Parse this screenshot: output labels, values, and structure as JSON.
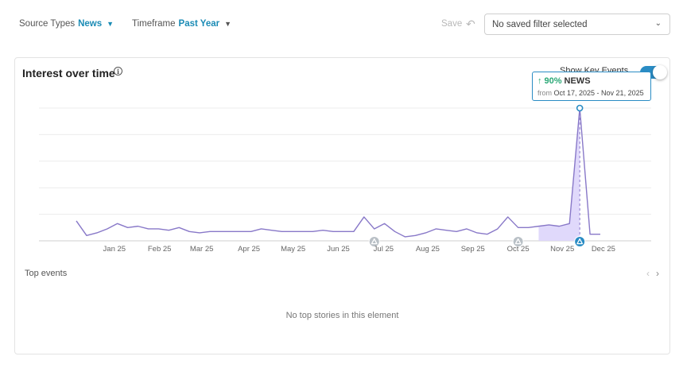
{
  "filters": {
    "source_label": "Source Types",
    "source_value": "News",
    "timeframe_label": "Timeframe",
    "timeframe_value": "Past Year"
  },
  "toolbar": {
    "save_label": "Save"
  },
  "saved_filter": {
    "value": "No saved filter selected"
  },
  "card": {
    "title": "Interest over time",
    "show_key_events_label": "Show Key Events",
    "show_key_events": true
  },
  "tooltip": {
    "percent": "90%",
    "series": "NEWS",
    "from_label": "from",
    "dates": "Oct 17, 2025 - Nov 21, 2025"
  },
  "top_events": {
    "label": "Top events",
    "empty_text": "No top stories in this element"
  },
  "colors": {
    "accent": "#2a8cc4",
    "line": "#8878c8",
    "fill": "#ddd5fb",
    "up": "#2aa876"
  },
  "chart_data": {
    "type": "line",
    "title": "",
    "xlabel": "",
    "ylabel": "",
    "ylim": [
      0,
      100
    ],
    "grid": true,
    "x_tick_labels": [
      "Jan 25",
      "Feb 25",
      "Mar 25",
      "Apr 25",
      "May 25",
      "Jun 25",
      "Jul 25",
      "Aug 25",
      "Sep 25",
      "Oct 25",
      "Nov 25",
      "Dec 25"
    ],
    "x_tick_weeks": [
      3.7,
      8.1,
      12.2,
      16.8,
      21.1,
      25.5,
      29.9,
      34.2,
      38.6,
      43.0,
      47.3,
      51.3
    ],
    "series": [
      {
        "name": "NEWS",
        "week_index": [
          0,
          1,
          2,
          3,
          4,
          5,
          6,
          7,
          8,
          9,
          10,
          11,
          12,
          13,
          14,
          15,
          16,
          17,
          18,
          19,
          20,
          21,
          22,
          23,
          24,
          25,
          26,
          27,
          28,
          29,
          30,
          31,
          32,
          33,
          34,
          35,
          36,
          37,
          38,
          39,
          40,
          41,
          42,
          43,
          44,
          45,
          46,
          47,
          48,
          49,
          50,
          51
        ],
        "values": [
          15,
          4,
          6,
          9,
          13,
          10,
          11,
          9,
          9,
          8,
          10,
          7,
          6,
          7,
          7,
          7,
          7,
          7,
          9,
          8,
          7,
          7,
          7,
          7,
          8,
          7,
          7,
          7,
          18,
          9,
          13,
          7,
          3,
          4,
          6,
          9,
          8,
          7,
          9,
          6,
          5,
          9,
          18,
          10,
          10,
          11,
          12,
          11,
          13,
          100,
          5,
          5
        ]
      }
    ],
    "highlight_range_weeks": [
      45,
      49
    ],
    "key_event_weeks": [
      29,
      43,
      49
    ],
    "tooltip_week": 49
  }
}
